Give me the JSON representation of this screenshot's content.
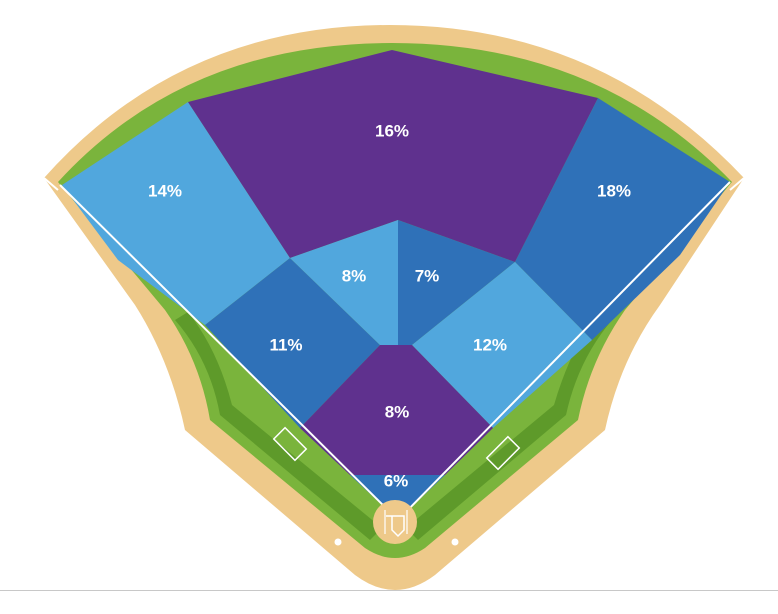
{
  "diagram": {
    "colors": {
      "dirt": "#eec98a",
      "grass": "#7ab43c",
      "grass_dark": "#5e9a2a",
      "purple": "#5f318e",
      "blue_dark": "#2f71b8",
      "blue_light": "#51a7dd",
      "line": "#ffffff"
    },
    "zones": [
      {
        "id": "left-field",
        "label": "14%",
        "color": "blue_light"
      },
      {
        "id": "center-field",
        "label": "16%",
        "color": "purple"
      },
      {
        "id": "right-field",
        "label": "18%",
        "color": "blue_dark"
      },
      {
        "id": "left-center-shallow",
        "label": "11%",
        "color": "blue_dark"
      },
      {
        "id": "center-left-shallow",
        "label": "8%",
        "color": "blue_light"
      },
      {
        "id": "center-right-shallow",
        "label": "7%",
        "color": "blue_dark"
      },
      {
        "id": "right-center-shallow",
        "label": "12%",
        "color": "blue_light"
      },
      {
        "id": "infield-middle",
        "label": "8%",
        "color": "purple"
      },
      {
        "id": "infield-near",
        "label": "6%",
        "color": "blue_dark"
      }
    ]
  }
}
